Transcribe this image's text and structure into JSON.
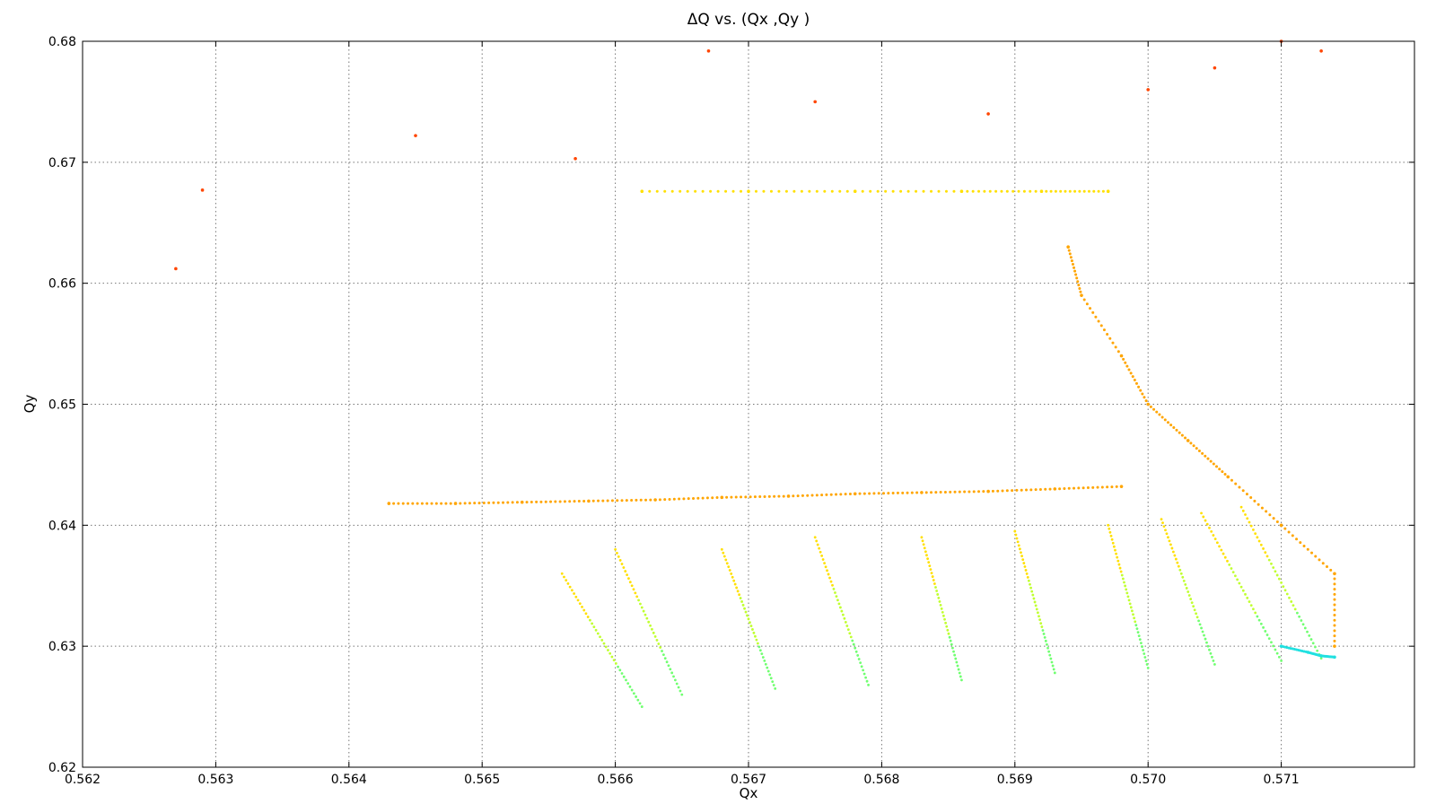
{
  "chart_data": {
    "type": "scatter",
    "title": "ΔQ vs. (Qx ,Qy )",
    "xlabel": "Qx",
    "ylabel": "Qy",
    "xlim": [
      0.562,
      0.572
    ],
    "ylim": [
      0.62,
      0.68
    ],
    "x_ticks": [
      "0.562",
      "0.563",
      "0.564",
      "0.565",
      "0.566",
      "0.567",
      "0.568",
      "0.569",
      "0.570",
      "0.571"
    ],
    "y_ticks": [
      "0.62",
      "0.63",
      "0.64",
      "0.65",
      "0.66",
      "0.67",
      "0.68"
    ],
    "grid": true,
    "colormap": "jet (dark red = large ΔQ, cyan = small ΔQ)",
    "colors": {
      "dark_red": "#8b0000",
      "orange_red": "#ff4500",
      "orange": "#ffa500",
      "yellow": "#ffe000",
      "yellow_green": "#c0ff30",
      "green": "#70ff70",
      "cyan": "#20e0e0",
      "blue": "#1e90ff"
    },
    "series": [
      {
        "color": "orange",
        "desc": "horizontal band",
        "points": [
          [
            0.5643,
            0.6418
          ],
          [
            0.5648,
            0.6418
          ],
          [
            0.5653,
            0.6419
          ],
          [
            0.5658,
            0.642
          ],
          [
            0.5663,
            0.6421
          ],
          [
            0.5668,
            0.6423
          ],
          [
            0.5673,
            0.6424
          ],
          [
            0.5678,
            0.6426
          ],
          [
            0.5683,
            0.6427
          ],
          [
            0.5688,
            0.6428
          ],
          [
            0.5693,
            0.643
          ],
          [
            0.5698,
            0.6432
          ]
        ]
      },
      {
        "color": "yellow",
        "desc": "upper horizontal band",
        "points": [
          [
            0.5662,
            0.6676
          ],
          [
            0.567,
            0.6676
          ],
          [
            0.5678,
            0.6676
          ],
          [
            0.5686,
            0.6676
          ],
          [
            0.5692,
            0.6676
          ],
          [
            0.5697,
            0.6676
          ]
        ]
      },
      {
        "color": "orange",
        "desc": "boundary arc",
        "points": [
          [
            0.5694,
            0.663
          ],
          [
            0.5695,
            0.659
          ],
          [
            0.5698,
            0.654
          ],
          [
            0.57,
            0.65
          ],
          [
            0.5703,
            0.647
          ],
          [
            0.5706,
            0.644
          ],
          [
            0.571,
            0.64
          ],
          [
            0.5714,
            0.636
          ],
          [
            0.5714,
            0.63
          ]
        ]
      },
      {
        "color": "green",
        "desc": "tune-spread streaks",
        "streaks": [
          [
            [
              0.5656,
              0.636
            ],
            [
              0.5662,
              0.625
            ]
          ],
          [
            [
              0.566,
              0.638
            ],
            [
              0.5665,
              0.626
            ]
          ],
          [
            [
              0.5668,
              0.638
            ],
            [
              0.5672,
              0.6265
            ]
          ],
          [
            [
              0.5675,
              0.639
            ],
            [
              0.5679,
              0.6268
            ]
          ],
          [
            [
              0.5683,
              0.639
            ],
            [
              0.5686,
              0.6272
            ]
          ],
          [
            [
              0.569,
              0.6395
            ],
            [
              0.5693,
              0.6278
            ]
          ],
          [
            [
              0.5697,
              0.64
            ],
            [
              0.57,
              0.6282
            ]
          ],
          [
            [
              0.5701,
              0.6405
            ],
            [
              0.5705,
              0.6285
            ]
          ],
          [
            [
              0.5704,
              0.641
            ],
            [
              0.571,
              0.6288
            ]
          ],
          [
            [
              0.5707,
              0.6415
            ],
            [
              0.5713,
              0.629
            ]
          ]
        ]
      },
      {
        "color": "cyan",
        "desc": "low-ΔQ corner",
        "points": [
          [
            0.571,
            0.63
          ],
          [
            0.5712,
            0.6295
          ],
          [
            0.5713,
            0.6292
          ],
          [
            0.5714,
            0.6291
          ]
        ]
      },
      {
        "color": "orange_red",
        "desc": "scattered outliers",
        "points": [
          [
            0.5627,
            0.6612
          ],
          [
            0.5629,
            0.6677
          ],
          [
            0.5645,
            0.6722
          ],
          [
            0.5657,
            0.6703
          ],
          [
            0.5667,
            0.6792
          ],
          [
            0.5675,
            0.675
          ],
          [
            0.5688,
            0.674
          ],
          [
            0.57,
            0.676
          ],
          [
            0.5705,
            0.6778
          ],
          [
            0.5713,
            0.6792
          ],
          [
            0.571,
            0.68
          ]
        ]
      }
    ]
  }
}
